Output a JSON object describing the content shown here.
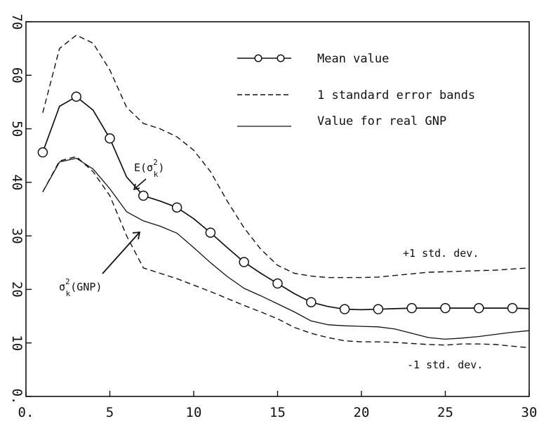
{
  "chart_data": {
    "type": "line",
    "title": "",
    "xlabel": "",
    "ylabel": "",
    "xlim": [
      0,
      30
    ],
    "ylim": [
      0,
      70
    ],
    "x_ticks": [
      0,
      5,
      10,
      15,
      20,
      25,
      30
    ],
    "x_tick_labels": [
      "0.",
      "5",
      "10",
      "15",
      "20",
      "25",
      "30"
    ],
    "y_ticks": [
      0,
      10,
      20,
      30,
      40,
      50,
      60,
      70
    ],
    "y_tick_labels": [
      "0.",
      "10",
      "20",
      "30",
      "40",
      "50",
      "60",
      "70"
    ],
    "grid": false,
    "legend_position": "top-right",
    "legend": [
      {
        "label": "Mean value",
        "style": "line-circles"
      },
      {
        "label": "1 standard error bands",
        "style": "dashed"
      },
      {
        "label": "Value for real GNP",
        "style": "solid"
      }
    ],
    "series": [
      {
        "name": "Mean value",
        "style": "line-circles",
        "x": [
          1,
          2,
          3,
          4,
          5,
          6,
          7,
          8,
          9,
          10,
          11,
          12,
          13,
          14,
          15,
          16,
          17,
          18,
          19,
          20,
          21,
          22,
          23,
          24,
          25,
          26,
          27,
          28,
          29,
          30
        ],
        "y": [
          45.6,
          54.2,
          56.0,
          53.5,
          48.2,
          41.0,
          37.5,
          36.5,
          35.3,
          33.2,
          30.6,
          27.8,
          25.1,
          23.0,
          21.1,
          19.2,
          17.6,
          16.8,
          16.3,
          16.2,
          16.3,
          16.4,
          16.5,
          16.5,
          16.5,
          16.5,
          16.5,
          16.5,
          16.5,
          16.4
        ],
        "markers_at": [
          1,
          3,
          5,
          7,
          9,
          11,
          13,
          15,
          17,
          19,
          21,
          23,
          25,
          27,
          29
        ]
      },
      {
        "name": "+1 std. dev.",
        "style": "dashed",
        "x": [
          1,
          2,
          3,
          4,
          5,
          6,
          7,
          8,
          9,
          10,
          11,
          12,
          13,
          14,
          15,
          16,
          17,
          18,
          19,
          20,
          21,
          22,
          23,
          24,
          25,
          26,
          27,
          28,
          29,
          30
        ],
        "y": [
          53.0,
          65.0,
          67.5,
          66.0,
          61.0,
          54.0,
          51.0,
          50.0,
          48.5,
          46.0,
          42.0,
          36.5,
          31.5,
          27.5,
          24.5,
          23.0,
          22.5,
          22.2,
          22.2,
          22.2,
          22.3,
          22.6,
          22.9,
          23.2,
          23.3,
          23.4,
          23.5,
          23.6,
          23.8,
          24.0
        ]
      },
      {
        "name": "Value for real GNP",
        "style": "solid",
        "x": [
          1,
          2,
          3,
          4,
          5,
          6,
          7,
          8,
          9,
          10,
          11,
          12,
          13,
          14,
          15,
          16,
          17,
          18,
          19,
          20,
          21,
          22,
          23,
          24,
          25,
          26,
          27,
          28,
          29,
          30
        ],
        "y": [
          38.2,
          43.8,
          44.5,
          42.5,
          38.8,
          34.5,
          32.8,
          31.8,
          30.5,
          27.8,
          25.0,
          22.4,
          20.2,
          18.8,
          17.3,
          15.8,
          14.1,
          13.4,
          13.2,
          13.1,
          13.0,
          12.6,
          11.8,
          11.0,
          10.7,
          10.9,
          11.2,
          11.6,
          12.0,
          12.3
        ]
      },
      {
        "name": "-1 std. dev.",
        "style": "dashed",
        "x": [
          1,
          2,
          3,
          4,
          5,
          6,
          7,
          8,
          9,
          10,
          11,
          12,
          13,
          14,
          15,
          16,
          17,
          18,
          19,
          20,
          21,
          22,
          23,
          24,
          25,
          26,
          27,
          28,
          29,
          30
        ],
        "y": [
          38.2,
          44.0,
          44.8,
          42.0,
          37.5,
          30.0,
          24.0,
          23.0,
          22.0,
          20.8,
          19.6,
          18.3,
          17.0,
          15.8,
          14.5,
          12.9,
          11.8,
          11.0,
          10.4,
          10.2,
          10.2,
          10.1,
          9.9,
          9.7,
          9.6,
          9.8,
          9.8,
          9.7,
          9.4,
          9.1
        ]
      }
    ],
    "annotations": {
      "plus_band": "+1 std. dev.",
      "minus_band": "-1 std. dev.",
      "mean_label": {
        "base": "E(σ",
        "sup": "2",
        "sub": "k",
        "tail": ")"
      },
      "gnp_label": {
        "base": "σ",
        "sup": "2",
        "sub": "k",
        "tail": "(GNP)"
      }
    }
  }
}
